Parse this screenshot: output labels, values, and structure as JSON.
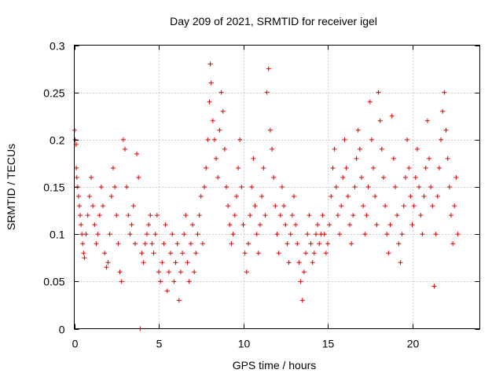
{
  "chart_data": {
    "type": "scatter",
    "title": "Day 209 of 2021, SRMTID for receiver igel",
    "xlabel": "GPS time / hours",
    "ylabel": "SRMTID / TECUs",
    "xlim": [
      0,
      24
    ],
    "ylim": [
      0,
      0.3
    ],
    "x_ticks": [
      0,
      5,
      10,
      15,
      20
    ],
    "x_tick_labels": [
      "0",
      "5",
      "10",
      "15",
      "20"
    ],
    "y_ticks": [
      0,
      0.05,
      0.1,
      0.15,
      0.2,
      0.25,
      0.3
    ],
    "y_tick_labels": [
      "0",
      "0.05",
      "0.1",
      "0.15",
      "0.2",
      "0.25",
      "0.3"
    ],
    "grid": true,
    "marker": "plus",
    "color": "#e00000",
    "series": [
      {
        "name": "SRMTID",
        "points": [
          [
            0.02,
            0.21
          ],
          [
            0.05,
            0.2
          ],
          [
            0.1,
            0.195
          ],
          [
            0.12,
            0.17
          ],
          [
            0.15,
            0.16
          ],
          [
            0.2,
            0.15
          ],
          [
            0.25,
            0.14
          ],
          [
            0.3,
            0.13
          ],
          [
            0.35,
            0.12
          ],
          [
            0.4,
            0.11
          ],
          [
            0.45,
            0.1
          ],
          [
            0.5,
            0.09
          ],
          [
            0.55,
            0.08
          ],
          [
            0.6,
            0.075
          ],
          [
            0.7,
            0.1
          ],
          [
            0.8,
            0.12
          ],
          [
            0.9,
            0.14
          ],
          [
            1.0,
            0.16
          ],
          [
            1.1,
            0.13
          ],
          [
            1.2,
            0.11
          ],
          [
            1.3,
            0.09
          ],
          [
            1.4,
            0.1
          ],
          [
            1.5,
            0.12
          ],
          [
            1.6,
            0.15
          ],
          [
            1.7,
            0.13
          ],
          [
            1.8,
            0.08
          ],
          [
            1.9,
            0.065
          ],
          [
            2.0,
            0.07
          ],
          [
            2.1,
            0.1
          ],
          [
            2.2,
            0.14
          ],
          [
            2.3,
            0.17
          ],
          [
            2.4,
            0.15
          ],
          [
            2.5,
            0.12
          ],
          [
            2.6,
            0.09
          ],
          [
            2.7,
            0.06
          ],
          [
            2.8,
            0.05
          ],
          [
            2.9,
            0.2
          ],
          [
            3.0,
            0.19
          ],
          [
            3.1,
            0.15
          ],
          [
            3.2,
            0.12
          ],
          [
            3.3,
            0.1
          ],
          [
            3.4,
            0.11
          ],
          [
            3.5,
            0.13
          ],
          [
            3.6,
            0.09
          ],
          [
            3.7,
            0.185
          ],
          [
            3.8,
            0.16
          ],
          [
            3.9,
            0.0
          ],
          [
            4.0,
            0.08
          ],
          [
            4.1,
            0.07
          ],
          [
            4.2,
            0.09
          ],
          [
            4.3,
            0.1
          ],
          [
            4.4,
            0.11
          ],
          [
            4.5,
            0.12
          ],
          [
            4.6,
            0.09
          ],
          [
            4.7,
            0.08
          ],
          [
            4.8,
            0.1
          ],
          [
            4.9,
            0.12
          ],
          [
            5.0,
            0.06
          ],
          [
            5.1,
            0.05
          ],
          [
            5.2,
            0.07
          ],
          [
            5.3,
            0.09
          ],
          [
            5.4,
            0.11
          ],
          [
            5.5,
            0.04
          ],
          [
            5.6,
            0.06
          ],
          [
            5.7,
            0.08
          ],
          [
            5.8,
            0.1
          ],
          [
            5.9,
            0.05
          ],
          [
            6.0,
            0.07
          ],
          [
            6.1,
            0.09
          ],
          [
            6.2,
            0.03
          ],
          [
            6.3,
            0.06
          ],
          [
            6.4,
            0.08
          ],
          [
            6.5,
            0.1
          ],
          [
            6.6,
            0.12
          ],
          [
            6.7,
            0.07
          ],
          [
            6.8,
            0.05
          ],
          [
            6.9,
            0.09
          ],
          [
            7.0,
            0.11
          ],
          [
            7.1,
            0.06
          ],
          [
            7.2,
            0.08
          ],
          [
            7.3,
            0.1
          ],
          [
            7.4,
            0.12
          ],
          [
            7.5,
            0.14
          ],
          [
            7.6,
            0.09
          ],
          [
            7.7,
            0.15
          ],
          [
            7.8,
            0.17
          ],
          [
            7.9,
            0.2
          ],
          [
            8.0,
            0.24
          ],
          [
            8.05,
            0.28
          ],
          [
            8.1,
            0.26
          ],
          [
            8.2,
            0.22
          ],
          [
            8.3,
            0.2
          ],
          [
            8.4,
            0.18
          ],
          [
            8.5,
            0.16
          ],
          [
            8.6,
            0.21
          ],
          [
            8.7,
            0.25
          ],
          [
            8.8,
            0.23
          ],
          [
            8.9,
            0.19
          ],
          [
            9.0,
            0.15
          ],
          [
            9.1,
            0.13
          ],
          [
            9.2,
            0.11
          ],
          [
            9.3,
            0.09
          ],
          [
            9.4,
            0.1
          ],
          [
            9.5,
            0.12
          ],
          [
            9.6,
            0.14
          ],
          [
            9.7,
            0.17
          ],
          [
            9.8,
            0.2
          ],
          [
            9.9,
            0.15
          ],
          [
            10.0,
            0.11
          ],
          [
            10.1,
            0.08
          ],
          [
            10.2,
            0.06
          ],
          [
            10.3,
            0.09
          ],
          [
            10.4,
            0.12
          ],
          [
            10.5,
            0.15
          ],
          [
            10.6,
            0.18
          ],
          [
            10.7,
            0.13
          ],
          [
            10.8,
            0.1
          ],
          [
            10.9,
            0.08
          ],
          [
            11.0,
            0.11
          ],
          [
            11.1,
            0.14
          ],
          [
            11.2,
            0.17
          ],
          [
            11.3,
            0.12
          ],
          [
            11.4,
            0.25
          ],
          [
            11.5,
            0.275
          ],
          [
            11.6,
            0.21
          ],
          [
            11.7,
            0.19
          ],
          [
            11.8,
            0.16
          ],
          [
            11.9,
            0.13
          ],
          [
            12.0,
            0.1
          ],
          [
            12.1,
            0.08
          ],
          [
            12.2,
            0.12
          ],
          [
            12.3,
            0.15
          ],
          [
            12.4,
            0.13
          ],
          [
            12.5,
            0.11
          ],
          [
            12.6,
            0.09
          ],
          [
            12.7,
            0.07
          ],
          [
            12.8,
            0.1
          ],
          [
            12.9,
            0.12
          ],
          [
            13.0,
            0.14
          ],
          [
            13.1,
            0.11
          ],
          [
            13.2,
            0.09
          ],
          [
            13.3,
            0.07
          ],
          [
            13.4,
            0.05
          ],
          [
            13.5,
            0.03
          ],
          [
            13.6,
            0.06
          ],
          [
            13.7,
            0.08
          ],
          [
            13.8,
            0.1
          ],
          [
            13.9,
            0.12
          ],
          [
            14.0,
            0.09
          ],
          [
            14.1,
            0.07
          ],
          [
            14.2,
            0.08
          ],
          [
            14.3,
            0.1
          ],
          [
            14.4,
            0.11
          ],
          [
            14.5,
            0.09
          ],
          [
            14.6,
            0.1
          ],
          [
            14.7,
            0.12
          ],
          [
            14.8,
            0.1
          ],
          [
            14.9,
            0.08
          ],
          [
            15.0,
            0.09
          ],
          [
            15.1,
            0.11
          ],
          [
            15.2,
            0.14
          ],
          [
            15.3,
            0.17
          ],
          [
            15.4,
            0.19
          ],
          [
            15.5,
            0.15
          ],
          [
            15.6,
            0.12
          ],
          [
            15.7,
            0.1
          ],
          [
            15.8,
            0.13
          ],
          [
            15.9,
            0.16
          ],
          [
            16.0,
            0.2
          ],
          [
            16.1,
            0.17
          ],
          [
            16.2,
            0.14
          ],
          [
            16.3,
            0.11
          ],
          [
            16.4,
            0.09
          ],
          [
            16.5,
            0.12
          ],
          [
            16.6,
            0.15
          ],
          [
            16.7,
            0.18
          ],
          [
            16.8,
            0.21
          ],
          [
            16.9,
            0.19
          ],
          [
            17.0,
            0.16
          ],
          [
            17.1,
            0.13
          ],
          [
            17.2,
            0.1
          ],
          [
            17.3,
            0.12
          ],
          [
            17.4,
            0.15
          ],
          [
            17.5,
            0.24
          ],
          [
            17.6,
            0.2
          ],
          [
            17.7,
            0.17
          ],
          [
            17.8,
            0.14
          ],
          [
            17.9,
            0.11
          ],
          [
            18.0,
            0.25
          ],
          [
            18.1,
            0.22
          ],
          [
            18.2,
            0.19
          ],
          [
            18.3,
            0.16
          ],
          [
            18.4,
            0.13
          ],
          [
            18.5,
            0.1
          ],
          [
            18.6,
            0.08
          ],
          [
            18.7,
            0.11
          ],
          [
            18.8,
            0.225
          ],
          [
            18.9,
            0.18
          ],
          [
            19.0,
            0.15
          ],
          [
            19.1,
            0.12
          ],
          [
            19.2,
            0.09
          ],
          [
            19.3,
            0.07
          ],
          [
            19.4,
            0.1
          ],
          [
            19.5,
            0.13
          ],
          [
            19.6,
            0.16
          ],
          [
            19.7,
            0.2
          ],
          [
            19.8,
            0.17
          ],
          [
            19.9,
            0.14
          ],
          [
            20.0,
            0.11
          ],
          [
            20.1,
            0.13
          ],
          [
            20.2,
            0.16
          ],
          [
            20.3,
            0.19
          ],
          [
            20.4,
            0.15
          ],
          [
            20.5,
            0.12
          ],
          [
            20.6,
            0.1
          ],
          [
            20.7,
            0.14
          ],
          [
            20.8,
            0.17
          ],
          [
            20.9,
            0.22
          ],
          [
            21.0,
            0.18
          ],
          [
            21.1,
            0.15
          ],
          [
            21.2,
            0.13
          ],
          [
            21.3,
            0.045
          ],
          [
            21.4,
            0.1
          ],
          [
            21.5,
            0.14
          ],
          [
            21.6,
            0.17
          ],
          [
            21.7,
            0.2
          ],
          [
            21.8,
            0.23
          ],
          [
            21.9,
            0.25
          ],
          [
            22.0,
            0.21
          ],
          [
            22.1,
            0.18
          ],
          [
            22.2,
            0.15
          ],
          [
            22.3,
            0.12
          ],
          [
            22.4,
            0.09
          ],
          [
            22.5,
            0.13
          ],
          [
            22.6,
            0.16
          ],
          [
            22.7,
            0.1
          ]
        ]
      }
    ]
  }
}
